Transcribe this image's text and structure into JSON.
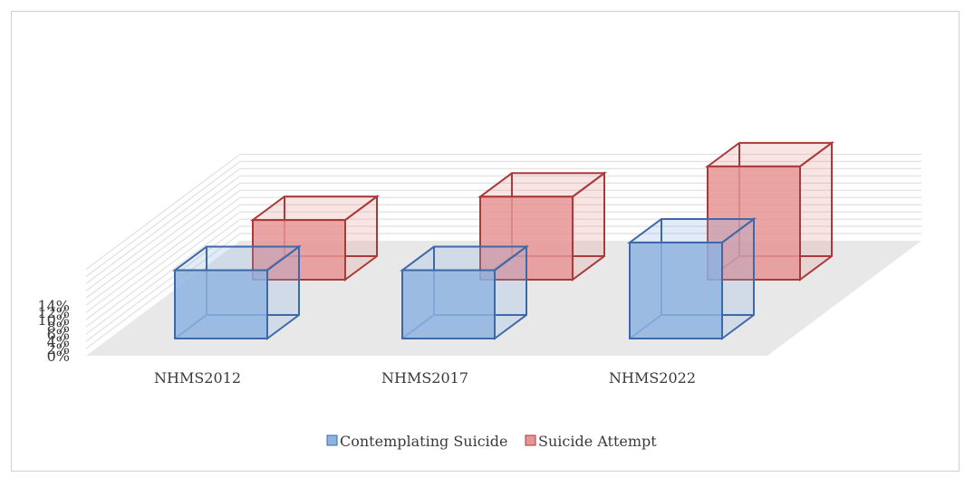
{
  "chart_data": {
    "type": "bar",
    "categories": [
      "NHMS2012",
      "NHMS2017",
      "NHMS2022"
    ],
    "series": [
      {
        "name": "Contemplating Suicide",
        "values": [
          7.9,
          7.9,
          11.1
        ]
      },
      {
        "name": "Suicide Attempt",
        "values": [
          6.9,
          9.6,
          13.1
        ]
      }
    ],
    "yticks": [
      "0%",
      "2%",
      "4%",
      "6%",
      "8%",
      "10%",
      "12%",
      "14%"
    ],
    "ylim": [
      0,
      14
    ],
    "grid": true,
    "legend_position": "bottom",
    "colors": {
      "series1_fill": "#8db3e2",
      "series1_edge": "#3e69a8",
      "series2_fill": "#e69494",
      "series2_edge": "#a83a3a",
      "floor": "#e8e8e8",
      "grid": "#e2e2e2"
    }
  }
}
